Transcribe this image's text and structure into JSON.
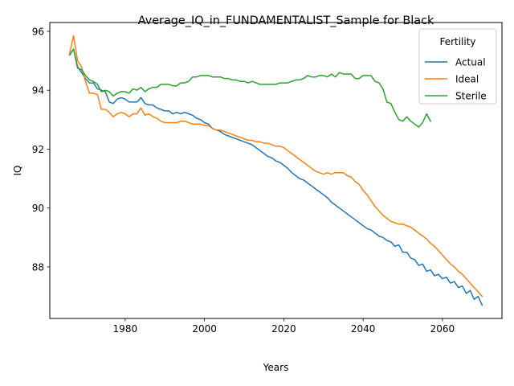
{
  "chart_data": {
    "type": "line",
    "title": "Average_IQ_in_FUNDAMENTALIST_Sample for Black",
    "xlabel": "Years",
    "ylabel": "IQ",
    "xlim": [
      1961,
      2075
    ],
    "ylim": [
      86.25,
      96.3
    ],
    "xticks": [
      1980,
      2000,
      2020,
      2040,
      2060
    ],
    "yticks": [
      88,
      90,
      92,
      94,
      96
    ],
    "legend": {
      "title": "Fertility",
      "position": "top-right"
    },
    "grid": false,
    "series": [
      {
        "name": "Actual",
        "color": "#1f77b4",
        "points": [
          [
            1966,
            95.2
          ],
          [
            1967,
            95.4
          ],
          [
            1968,
            94.8
          ],
          [
            1969,
            94.6
          ],
          [
            1970,
            94.4
          ],
          [
            1971,
            94.25
          ],
          [
            1972,
            94.25
          ],
          [
            1973,
            94.05
          ],
          [
            1974,
            94.0
          ],
          [
            1975,
            93.95
          ],
          [
            1976,
            93.6
          ],
          [
            1977,
            93.55
          ],
          [
            1978,
            93.7
          ],
          [
            1979,
            93.75
          ],
          [
            1980,
            93.7
          ],
          [
            1981,
            93.6
          ],
          [
            1982,
            93.6
          ],
          [
            1983,
            93.6
          ],
          [
            1984,
            93.75
          ],
          [
            1985,
            93.55
          ],
          [
            1986,
            93.5
          ],
          [
            1987,
            93.5
          ],
          [
            1988,
            93.4
          ],
          [
            1989,
            93.35
          ],
          [
            1990,
            93.3
          ],
          [
            1991,
            93.3
          ],
          [
            1992,
            93.2
          ],
          [
            1993,
            93.25
          ],
          [
            1994,
            93.2
          ],
          [
            1995,
            93.25
          ],
          [
            1996,
            93.2
          ],
          [
            1997,
            93.15
          ],
          [
            1998,
            93.05
          ],
          [
            1999,
            93.0
          ],
          [
            2000,
            92.9
          ],
          [
            2001,
            92.85
          ],
          [
            2002,
            92.7
          ],
          [
            2003,
            92.65
          ],
          [
            2004,
            92.6
          ],
          [
            2005,
            92.5
          ],
          [
            2006,
            92.45
          ],
          [
            2007,
            92.4
          ],
          [
            2008,
            92.35
          ],
          [
            2009,
            92.3
          ],
          [
            2010,
            92.25
          ],
          [
            2011,
            92.2
          ],
          [
            2012,
            92.15
          ],
          [
            2013,
            92.05
          ],
          [
            2014,
            91.95
          ],
          [
            2015,
            91.85
          ],
          [
            2016,
            91.75
          ],
          [
            2017,
            91.7
          ],
          [
            2018,
            91.6
          ],
          [
            2019,
            91.55
          ],
          [
            2020,
            91.45
          ],
          [
            2021,
            91.35
          ],
          [
            2022,
            91.2
          ],
          [
            2023,
            91.1
          ],
          [
            2024,
            91.0
          ],
          [
            2025,
            90.95
          ],
          [
            2026,
            90.85
          ],
          [
            2027,
            90.75
          ],
          [
            2028,
            90.65
          ],
          [
            2029,
            90.55
          ],
          [
            2030,
            90.45
          ],
          [
            2031,
            90.35
          ],
          [
            2032,
            90.2
          ],
          [
            2033,
            90.1
          ],
          [
            2034,
            90.0
          ],
          [
            2035,
            89.9
          ],
          [
            2036,
            89.8
          ],
          [
            2037,
            89.7
          ],
          [
            2038,
            89.6
          ],
          [
            2039,
            89.5
          ],
          [
            2040,
            89.4
          ],
          [
            2041,
            89.3
          ],
          [
            2042,
            89.25
          ],
          [
            2043,
            89.15
          ],
          [
            2044,
            89.05
          ],
          [
            2045,
            89.0
          ],
          [
            2046,
            88.9
          ],
          [
            2047,
            88.85
          ],
          [
            2048,
            88.7
          ],
          [
            2049,
            88.75
          ],
          [
            2050,
            88.5
          ],
          [
            2051,
            88.5
          ],
          [
            2052,
            88.3
          ],
          [
            2053,
            88.25
          ],
          [
            2054,
            88.05
          ],
          [
            2055,
            88.1
          ],
          [
            2056,
            87.85
          ],
          [
            2057,
            87.9
          ],
          [
            2058,
            87.7
          ],
          [
            2059,
            87.75
          ],
          [
            2060,
            87.6
          ],
          [
            2061,
            87.65
          ],
          [
            2062,
            87.45
          ],
          [
            2063,
            87.5
          ],
          [
            2064,
            87.3
          ],
          [
            2065,
            87.35
          ],
          [
            2066,
            87.1
          ],
          [
            2067,
            87.2
          ],
          [
            2068,
            86.9
          ],
          [
            2069,
            87.0
          ],
          [
            2070,
            86.7
          ]
        ]
      },
      {
        "name": "Ideal",
        "color": "#ff7f0e",
        "points": [
          [
            1966,
            95.25
          ],
          [
            1967,
            95.85
          ],
          [
            1968,
            95.0
          ],
          [
            1969,
            94.8
          ],
          [
            1970,
            94.3
          ],
          [
            1971,
            93.9
          ],
          [
            1972,
            93.9
          ],
          [
            1973,
            93.85
          ],
          [
            1974,
            93.35
          ],
          [
            1975,
            93.35
          ],
          [
            1976,
            93.25
          ],
          [
            1977,
            93.1
          ],
          [
            1978,
            93.2
          ],
          [
            1979,
            93.25
          ],
          [
            1980,
            93.2
          ],
          [
            1981,
            93.1
          ],
          [
            1982,
            93.2
          ],
          [
            1983,
            93.2
          ],
          [
            1984,
            93.4
          ],
          [
            1985,
            93.15
          ],
          [
            1986,
            93.2
          ],
          [
            1987,
            93.1
          ],
          [
            1988,
            93.05
          ],
          [
            1989,
            92.95
          ],
          [
            1990,
            92.9
          ],
          [
            1991,
            92.9
          ],
          [
            1992,
            92.9
          ],
          [
            1993,
            92.9
          ],
          [
            1994,
            92.95
          ],
          [
            1995,
            92.95
          ],
          [
            1996,
            92.9
          ],
          [
            1997,
            92.85
          ],
          [
            1998,
            92.85
          ],
          [
            1999,
            92.85
          ],
          [
            2000,
            92.8
          ],
          [
            2001,
            92.8
          ],
          [
            2002,
            92.7
          ],
          [
            2003,
            92.65
          ],
          [
            2004,
            92.65
          ],
          [
            2005,
            92.6
          ],
          [
            2006,
            92.55
          ],
          [
            2007,
            92.5
          ],
          [
            2008,
            92.45
          ],
          [
            2009,
            92.4
          ],
          [
            2010,
            92.35
          ],
          [
            2011,
            92.3
          ],
          [
            2012,
            92.3
          ],
          [
            2013,
            92.25
          ],
          [
            2014,
            92.25
          ],
          [
            2015,
            92.2
          ],
          [
            2016,
            92.2
          ],
          [
            2017,
            92.15
          ],
          [
            2018,
            92.1
          ],
          [
            2019,
            92.1
          ],
          [
            2020,
            92.05
          ],
          [
            2021,
            91.95
          ],
          [
            2022,
            91.85
          ],
          [
            2023,
            91.75
          ],
          [
            2024,
            91.65
          ],
          [
            2025,
            91.55
          ],
          [
            2026,
            91.45
          ],
          [
            2027,
            91.35
          ],
          [
            2028,
            91.25
          ],
          [
            2029,
            91.2
          ],
          [
            2030,
            91.15
          ],
          [
            2031,
            91.2
          ],
          [
            2032,
            91.15
          ],
          [
            2033,
            91.2
          ],
          [
            2034,
            91.2
          ],
          [
            2035,
            91.2
          ],
          [
            2036,
            91.1
          ],
          [
            2037,
            91.05
          ],
          [
            2038,
            90.9
          ],
          [
            2039,
            90.8
          ],
          [
            2040,
            90.6
          ],
          [
            2041,
            90.45
          ],
          [
            2042,
            90.25
          ],
          [
            2043,
            90.05
          ],
          [
            2044,
            89.9
          ],
          [
            2045,
            89.75
          ],
          [
            2046,
            89.65
          ],
          [
            2047,
            89.55
          ],
          [
            2048,
            89.5
          ],
          [
            2049,
            89.45
          ],
          [
            2050,
            89.45
          ],
          [
            2051,
            89.4
          ],
          [
            2052,
            89.35
          ],
          [
            2053,
            89.25
          ],
          [
            2054,
            89.15
          ],
          [
            2055,
            89.05
          ],
          [
            2056,
            88.95
          ],
          [
            2057,
            88.8
          ],
          [
            2058,
            88.7
          ],
          [
            2059,
            88.55
          ],
          [
            2060,
            88.4
          ],
          [
            2061,
            88.25
          ],
          [
            2062,
            88.1
          ],
          [
            2063,
            88.0
          ],
          [
            2064,
            87.85
          ],
          [
            2065,
            87.75
          ],
          [
            2066,
            87.6
          ],
          [
            2067,
            87.45
          ],
          [
            2068,
            87.3
          ],
          [
            2069,
            87.15
          ],
          [
            2070,
            87.0
          ]
        ]
      },
      {
        "name": "Sterile",
        "color": "#2ca02c",
        "points": [
          [
            1966,
            95.2
          ],
          [
            1967,
            95.4
          ],
          [
            1968,
            94.75
          ],
          [
            1969,
            94.7
          ],
          [
            1970,
            94.5
          ],
          [
            1971,
            94.35
          ],
          [
            1972,
            94.3
          ],
          [
            1973,
            94.2
          ],
          [
            1974,
            93.95
          ],
          [
            1975,
            94.0
          ],
          [
            1976,
            93.95
          ],
          [
            1977,
            93.8
          ],
          [
            1978,
            93.9
          ],
          [
            1979,
            93.95
          ],
          [
            1980,
            93.95
          ],
          [
            1981,
            93.9
          ],
          [
            1982,
            94.05
          ],
          [
            1983,
            94.0
          ],
          [
            1984,
            94.1
          ],
          [
            1985,
            93.95
          ],
          [
            1986,
            94.05
          ],
          [
            1987,
            94.1
          ],
          [
            1988,
            94.1
          ],
          [
            1989,
            94.2
          ],
          [
            1990,
            94.2
          ],
          [
            1991,
            94.2
          ],
          [
            1992,
            94.15
          ],
          [
            1993,
            94.15
          ],
          [
            1994,
            94.25
          ],
          [
            1995,
            94.25
          ],
          [
            1996,
            94.3
          ],
          [
            1997,
            94.45
          ],
          [
            1998,
            94.45
          ],
          [
            1999,
            94.5
          ],
          [
            2000,
            94.5
          ],
          [
            2001,
            94.5
          ],
          [
            2002,
            94.45
          ],
          [
            2003,
            94.45
          ],
          [
            2004,
            94.45
          ],
          [
            2005,
            94.4
          ],
          [
            2006,
            94.4
          ],
          [
            2007,
            94.35
          ],
          [
            2008,
            94.35
          ],
          [
            2009,
            94.3
          ],
          [
            2010,
            94.3
          ],
          [
            2011,
            94.25
          ],
          [
            2012,
            94.3
          ],
          [
            2013,
            94.25
          ],
          [
            2014,
            94.2
          ],
          [
            2015,
            94.2
          ],
          [
            2016,
            94.2
          ],
          [
            2017,
            94.2
          ],
          [
            2018,
            94.2
          ],
          [
            2019,
            94.25
          ],
          [
            2020,
            94.25
          ],
          [
            2021,
            94.25
          ],
          [
            2022,
            94.3
          ],
          [
            2023,
            94.35
          ],
          [
            2024,
            94.35
          ],
          [
            2025,
            94.4
          ],
          [
            2026,
            94.5
          ],
          [
            2027,
            94.45
          ],
          [
            2028,
            94.45
          ],
          [
            2029,
            94.5
          ],
          [
            2030,
            94.5
          ],
          [
            2031,
            94.45
          ],
          [
            2032,
            94.55
          ],
          [
            2033,
            94.45
          ],
          [
            2034,
            94.6
          ],
          [
            2035,
            94.55
          ],
          [
            2036,
            94.55
          ],
          [
            2037,
            94.55
          ],
          [
            2038,
            94.4
          ],
          [
            2039,
            94.4
          ],
          [
            2040,
            94.5
          ],
          [
            2041,
            94.5
          ],
          [
            2042,
            94.5
          ],
          [
            2043,
            94.3
          ],
          [
            2044,
            94.25
          ],
          [
            2045,
            94.05
          ],
          [
            2046,
            93.6
          ],
          [
            2047,
            93.55
          ],
          [
            2048,
            93.25
          ],
          [
            2049,
            93.0
          ],
          [
            2050,
            92.95
          ],
          [
            2051,
            93.1
          ],
          [
            2052,
            92.95
          ],
          [
            2053,
            92.85
          ],
          [
            2054,
            92.75
          ],
          [
            2055,
            92.9
          ],
          [
            2056,
            93.2
          ],
          [
            2057,
            92.95
          ]
        ]
      }
    ]
  }
}
